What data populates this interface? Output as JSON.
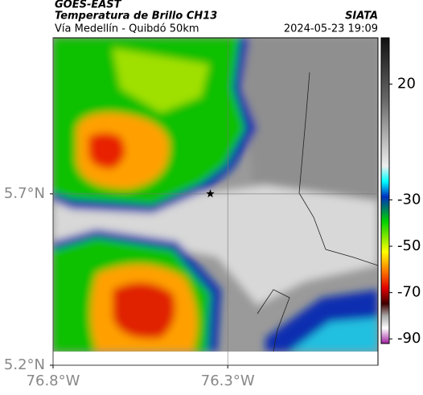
{
  "header": {
    "source": "GOES-EAST",
    "title": "Temperatura de Brillo CH13",
    "subtitle": "Vía Medellín - Quibdó 50km",
    "credit": "SIATA",
    "timestamp": "2024-05-23 19:09"
  },
  "map": {
    "xlim": [
      -76.8,
      -75.87
    ],
    "ylim": [
      5.2,
      6.155
    ],
    "xticks": [
      {
        "value": -76.8,
        "label": "76.8°W"
      },
      {
        "value": -76.3,
        "label": "76.3°W"
      }
    ],
    "yticks": [
      {
        "value": 5.2,
        "label": "5.2°N"
      },
      {
        "value": 5.7,
        "label": "5.7°N"
      }
    ],
    "grid": true,
    "marker": {
      "lon": -76.35,
      "lat": 5.7
    },
    "colorbar": {
      "lim": [
        40,
        -92
      ],
      "ticks": [
        20,
        -30,
        -50,
        -70,
        -90
      ]
    }
  }
}
